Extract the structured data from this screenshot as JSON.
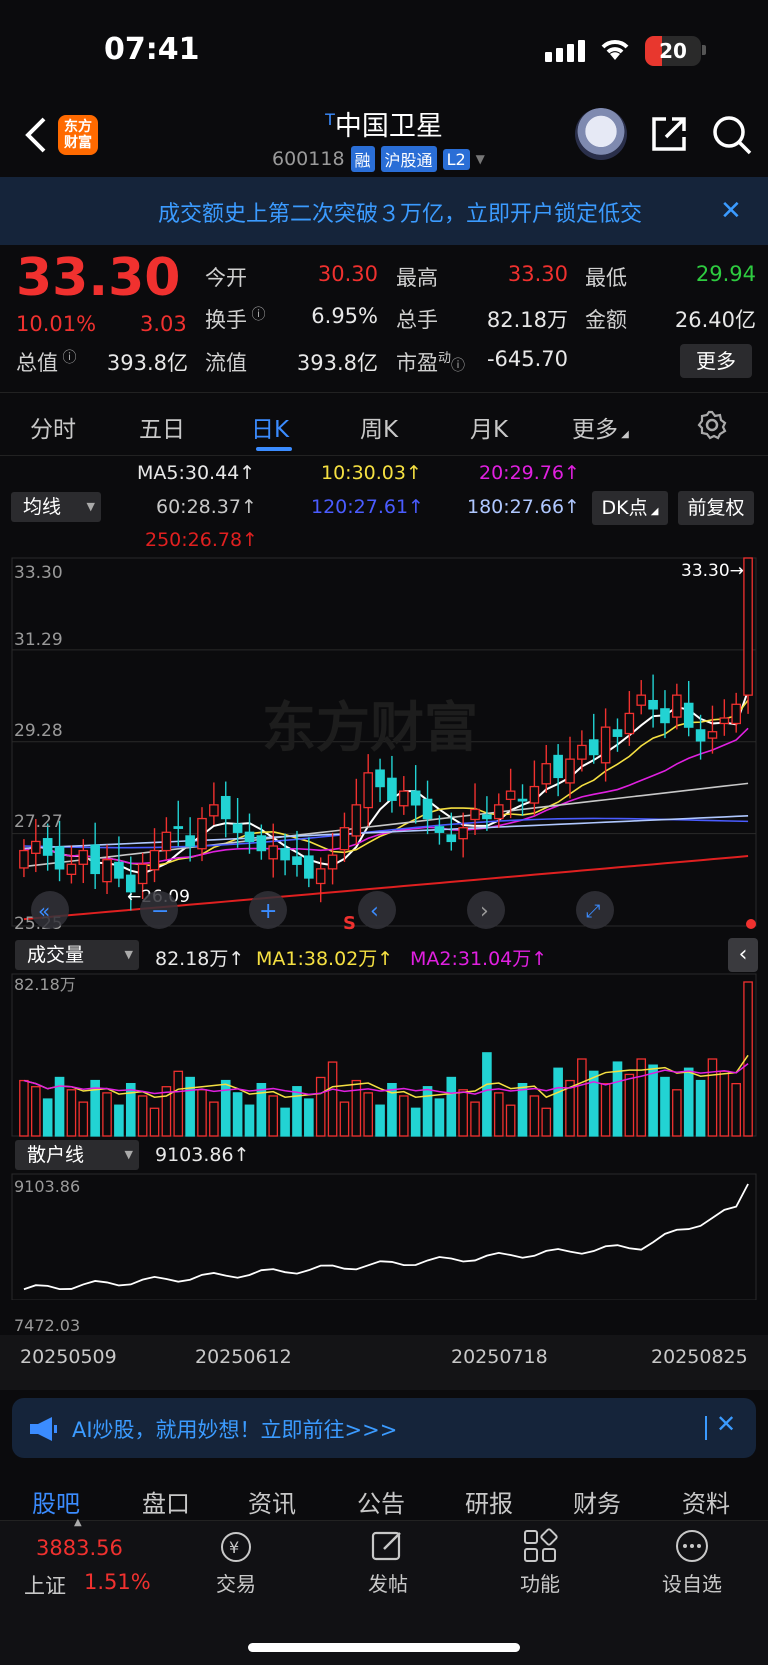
{
  "status": {
    "time": "07:41",
    "battery": "20"
  },
  "header": {
    "logo": "东方财富",
    "name_sup": "T",
    "name": "中国卫星",
    "code": "600118",
    "tags": [
      "融",
      "沪股通",
      "L2"
    ]
  },
  "ad_banner": {
    "text": "成交额史上第二次突破３万亿，立即开户锁定低交",
    "close": "✕"
  },
  "quote": {
    "price": "33.30",
    "pct": "10.01%",
    "chg": "3.03",
    "open_label": "今开",
    "open": "30.30",
    "high_label": "最高",
    "high": "33.30",
    "low_label": "最低",
    "low": "29.94",
    "turnover_label": "换手",
    "turnover": "6.95%",
    "volume_label": "总手",
    "volume": "82.18万",
    "amount_label": "金额",
    "amount": "26.40亿",
    "mktcap_label": "总值",
    "mktcap": "393.8亿",
    "float_label": "流值",
    "float": "393.8亿",
    "pe_label": "市盈",
    "pe_sup": "动",
    "pe": "-645.70",
    "more": "更多"
  },
  "tabs": [
    "分时",
    "五日",
    "日K",
    "周K",
    "月K",
    "更多"
  ],
  "ma_legend": {
    "selector": "均线",
    "ma5": "MA5:30.44↑",
    "ma10": "10:30.03↑",
    "ma20": "20:29.76↑",
    "ma60": "60:28.37↑",
    "ma120": "120:27.61↑",
    "ma180": "180:27.66↑",
    "ma250": "250:26.78↑",
    "dk": "DK点",
    "fq": "前复权"
  },
  "colors": {
    "ma5": "#ffffff",
    "ma10": "#f5e042",
    "ma20": "#e020e0",
    "ma60": "#c8c8c8",
    "ma120": "#4a5cff",
    "ma180": "#b0c8ff",
    "ma250": "#e02020",
    "up": "#f0312f",
    "down": "#22d3d3"
  },
  "kline_axis": {
    "max": "33.30",
    "l2": "31.29",
    "l3": "29.28",
    "l4": "27.27",
    "min": "25.25",
    "high_marker": "33.30→",
    "low_marker": "←26.09"
  },
  "volume": {
    "selector": "成交量",
    "val": "82.18万↑",
    "ma1": "MA1:38.02万↑",
    "ma2": "MA2:31.04万↑",
    "max": "82.18万"
  },
  "retail": {
    "selector": "散户线",
    "val": "9103.86↑",
    "max": "9103.86",
    "min": "7472.03"
  },
  "dates": [
    "20250509",
    "20250612",
    "20250718",
    "20250825"
  ],
  "ai_banner": {
    "text": "AI炒股，就用妙想！立即前往>>>",
    "close": "✕"
  },
  "bottom_tabs": [
    "股吧",
    "盘口",
    "资讯",
    "公告",
    "研报",
    "财务",
    "资料"
  ],
  "bottom_bar": {
    "index_value": "3883.56",
    "index_name": "上证",
    "index_pct": "1.51%",
    "items": [
      "交易",
      "发帖",
      "功能",
      "设自选"
    ]
  },
  "chart_data": {
    "type": "candlestick",
    "price_range": [
      25.25,
      33.3
    ],
    "last_close": 33.3,
    "closes": [
      26.9,
      27.1,
      26.8,
      26.5,
      26.6,
      26.9,
      26.4,
      26.7,
      26.3,
      26.0,
      26.6,
      26.9,
      27.3,
      27.4,
      27.0,
      27.6,
      27.9,
      27.6,
      27.3,
      27.1,
      26.9,
      27.0,
      26.7,
      26.6,
      26.3,
      26.5,
      26.8,
      27.4,
      27.9,
      28.6,
      28.3,
      28.0,
      28.2,
      27.9,
      27.6,
      27.3,
      27.1,
      27.4,
      27.8,
      27.6,
      27.9,
      28.2,
      28.0,
      28.3,
      28.8,
      28.5,
      28.9,
      29.2,
      29.0,
      29.6,
      29.4,
      29.9,
      30.3,
      30.0,
      29.7,
      30.3,
      29.6,
      29.3,
      29.5,
      29.8,
      30.1,
      33.3
    ],
    "ma5": 30.44,
    "ma10": 30.03,
    "ma20": 29.76,
    "ma60": 28.37,
    "ma120": 27.61,
    "ma180": 27.66,
    "ma250": 26.78,
    "volume_max": "82.18万",
    "retail_range": [
      7472.03,
      9103.86
    ]
  }
}
